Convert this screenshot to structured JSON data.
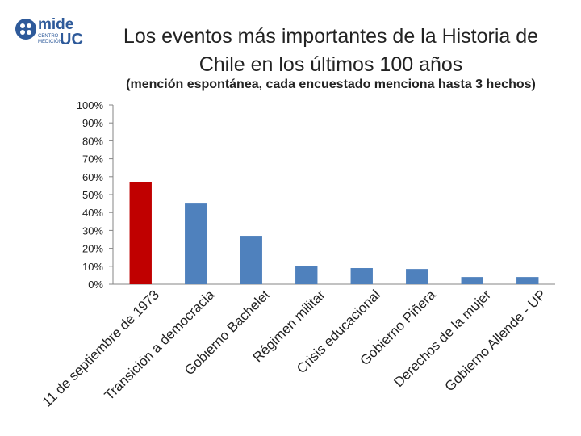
{
  "logo": {
    "mark": "mide",
    "small_line_1": "CENTRO",
    "small_line_2": "MEDICIÓN",
    "uc": "UC",
    "icon": "mide-uc-logo-icon"
  },
  "title_line_1": "Los eventos más importantes de la Historia de",
  "title_line_2": "Chile en los últimos 100 años",
  "subtitle": "(mención espontánea, cada encuestado menciona hasta 3 hechos)",
  "chart_data": {
    "type": "bar",
    "title": "Los eventos más importantes de la Historia de Chile en los últimos 100 años",
    "subtitle": "(mención espontánea, cada encuestado menciona hasta 3 hechos)",
    "categories": [
      "11 de septiembre de 1973",
      "Transición a democracia",
      "Gobierno Bachelet",
      "Régimen militar",
      "Crisis educacional",
      "Gobierno Piñera",
      "Derechos de la mujer",
      "Gobierno Allende - UP"
    ],
    "values": [
      57,
      45,
      27,
      10,
      9,
      8.5,
      4,
      4
    ],
    "yticks": [
      "0%",
      "10%",
      "20%",
      "30%",
      "40%",
      "50%",
      "60%",
      "70%",
      "80%",
      "90%",
      "100%"
    ],
    "ylim": [
      0,
      100
    ],
    "xlabel": "",
    "ylabel": "",
    "grid": false,
    "legend": "none",
    "bar_colors": [
      "#c00000",
      "#4f81bd",
      "#4f81bd",
      "#4f81bd",
      "#4f81bd",
      "#4f81bd",
      "#4f81bd",
      "#4f81bd"
    ]
  }
}
